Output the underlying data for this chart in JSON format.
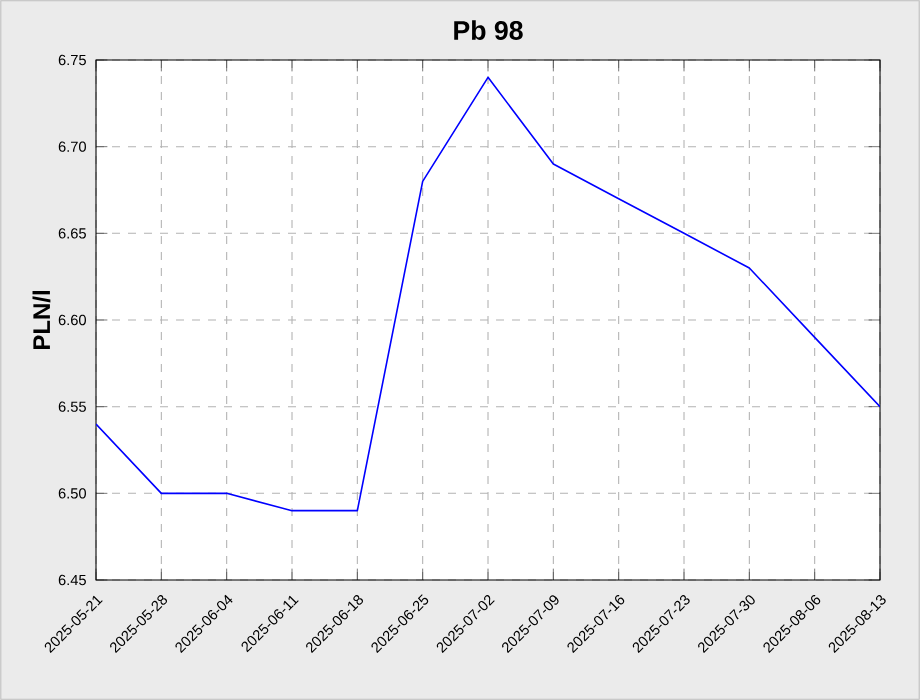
{
  "chart_data": {
    "type": "line",
    "title": "Pb 98",
    "ylabel": "PLN/l",
    "categories": [
      "2025-05-21",
      "2025-05-28",
      "2025-06-04",
      "2025-06-11",
      "2025-06-18",
      "2025-06-25",
      "2025-07-02",
      "2025-07-09",
      "2025-07-16",
      "2025-07-23",
      "2025-07-30",
      "2025-08-06",
      "2025-08-13"
    ],
    "series": [
      {
        "color": "#0000ff",
        "values": [
          6.54,
          6.5,
          6.5,
          6.49,
          6.49,
          6.68,
          6.74,
          6.69,
          6.67,
          6.65,
          6.63,
          6.59,
          6.55
        ]
      }
    ],
    "ylim": [
      6.45,
      6.75
    ],
    "yticks": [
      6.45,
      {
        "value": 6.5,
        "label": "6.50"
      },
      6.55,
      {
        "value": 6.6,
        "label": "6.60"
      },
      6.65,
      {
        "value": 6.7,
        "label": "6.70"
      },
      6.75
    ],
    "grid": true,
    "marker": "none",
    "line_style": "solid"
  }
}
